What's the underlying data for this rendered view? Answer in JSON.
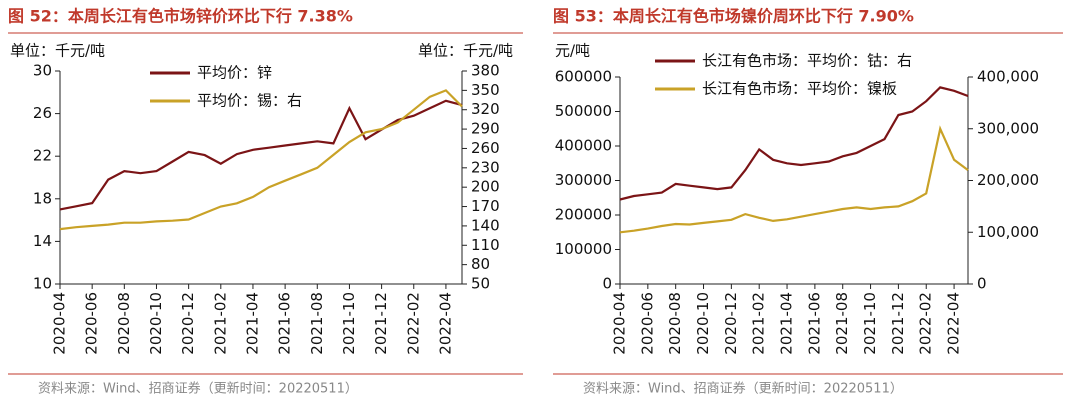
{
  "chart_data": [
    {
      "type": "line",
      "title": "图 52：本周长江有色市场锌价环比下行 7.38%",
      "y_unit": "单位：千元/吨",
      "y2_unit": "单位：千元/吨",
      "source": "资料来源：Wind、招商证券（更新时间：20220511）",
      "x": [
        "2020-04",
        "2020-05",
        "2020-06",
        "2020-07",
        "2020-08",
        "2020-09",
        "2020-10",
        "2020-11",
        "2020-12",
        "2021-01",
        "2021-02",
        "2021-03",
        "2021-04",
        "2021-05",
        "2021-06",
        "2021-07",
        "2021-08",
        "2021-09",
        "2021-10",
        "2021-11",
        "2021-12",
        "2022-01",
        "2022-02",
        "2022-03",
        "2022-04",
        "2022-05"
      ],
      "xticks": [
        "2020-04",
        "2020-06",
        "2020-08",
        "2020-10",
        "2020-12",
        "2021-02",
        "2021-04",
        "2021-06",
        "2021-08",
        "2021-10",
        "2021-12",
        "2022-02",
        "2022-04"
      ],
      "ylim": [
        10,
        30
      ],
      "yticks": [
        10,
        14,
        18,
        22,
        26,
        30
      ],
      "y2lim": [
        50,
        380
      ],
      "y2ticks": [
        50,
        80,
        110,
        140,
        170,
        200,
        230,
        260,
        290,
        320,
        350,
        380
      ],
      "series": [
        {
          "name": "平均价：锌",
          "color": "#7b1416",
          "values": [
            17.0,
            17.3,
            17.6,
            19.8,
            20.6,
            20.4,
            20.6,
            21.5,
            22.4,
            22.1,
            21.3,
            22.2,
            22.6,
            22.8,
            23.0,
            23.2,
            23.4,
            23.2,
            26.5,
            23.6,
            24.5,
            25.4,
            25.8,
            26.5,
            27.2,
            26.8
          ]
        },
        {
          "name": "平均价：锡：右",
          "color": "#c9a227",
          "axis": "y2",
          "values": [
            135,
            138,
            140,
            142,
            145,
            145,
            147,
            148,
            150,
            160,
            170,
            175,
            185,
            200,
            210,
            220,
            230,
            250,
            270,
            285,
            290,
            300,
            320,
            340,
            350,
            325
          ]
        }
      ]
    },
    {
      "type": "line",
      "title": "图 53：本周长江有色市场镍价周环比下行 7.90%",
      "y_unit": "元/吨",
      "source": "资料来源：Wind、招商证券（更新时间：20220511）",
      "x": [
        "2020-04",
        "2020-05",
        "2020-06",
        "2020-07",
        "2020-08",
        "2020-09",
        "2020-10",
        "2020-11",
        "2020-12",
        "2021-01",
        "2021-02",
        "2021-03",
        "2021-04",
        "2021-05",
        "2021-06",
        "2021-07",
        "2021-08",
        "2021-09",
        "2021-10",
        "2021-11",
        "2021-12",
        "2022-01",
        "2022-02",
        "2022-03",
        "2022-04",
        "2022-05"
      ],
      "xticks": [
        "2020-04",
        "2020-06",
        "2020-08",
        "2020-10",
        "2020-12",
        "2021-02",
        "2021-04",
        "2021-06",
        "2021-08",
        "2021-10",
        "2021-12",
        "2022-02",
        "2022-04"
      ],
      "ylim": [
        0,
        600000
      ],
      "yticks": [
        0,
        100000,
        200000,
        300000,
        400000,
        500000,
        600000
      ],
      "y2lim": [
        0,
        400000
      ],
      "y2ticks": [
        0,
        {
          "value": 100000,
          "label": "100,000"
        },
        {
          "value": 200000,
          "label": "200,000"
        },
        {
          "value": 300000,
          "label": "300,000"
        },
        {
          "value": 400000,
          "label": "400,000"
        }
      ],
      "series": [
        {
          "name": "长江有色市场：平均价：钴：右",
          "color": "#7b1416",
          "values": [
            245000,
            255000,
            260000,
            265000,
            290000,
            285000,
            280000,
            275000,
            280000,
            330000,
            390000,
            360000,
            350000,
            345000,
            350000,
            355000,
            370000,
            380000,
            400000,
            420000,
            490000,
            500000,
            530000,
            570000,
            560000,
            545000
          ]
        },
        {
          "name": "长江有色市场：平均价：镍板",
          "color": "#c9a227",
          "axis": "y2",
          "values": [
            100000,
            103000,
            107000,
            112000,
            116000,
            115000,
            118000,
            121000,
            124000,
            135000,
            128000,
            122000,
            125000,
            130000,
            135000,
            140000,
            145000,
            148000,
            145000,
            148000,
            150000,
            160000,
            175000,
            300000,
            240000,
            220000
          ]
        }
      ]
    }
  ]
}
